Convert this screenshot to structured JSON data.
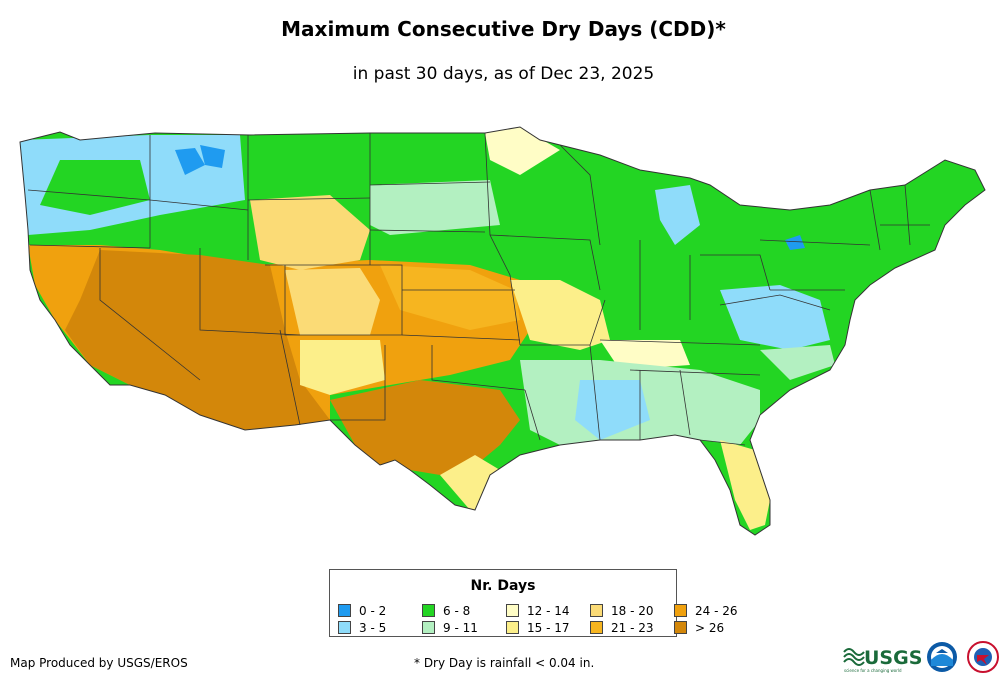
{
  "title": "Maximum Consecutive Dry Days (CDD)*",
  "subtitle": "in past 30 days, as of Dec 23, 2025",
  "legend": {
    "title": "Nr. Days",
    "items": [
      {
        "label": "0 - 2",
        "color": "#1f9bf0"
      },
      {
        "label": "3 - 5",
        "color": "#8fdcfa"
      },
      {
        "label": "6 - 8",
        "color": "#23d523"
      },
      {
        "label": "9 - 11",
        "color": "#b3f0c1"
      },
      {
        "label": "12 - 14",
        "color": "#fffdc6"
      },
      {
        "label": "15 - 17",
        "color": "#fcef8a"
      },
      {
        "label": "18 - 20",
        "color": "#fbdb76"
      },
      {
        "label": "21 - 23",
        "color": "#f6b520"
      },
      {
        "label": "24 - 26",
        "color": "#f0a10e"
      },
      {
        "label": "> 26",
        "color": "#d3870a"
      }
    ]
  },
  "footer": {
    "credit": "Map Produced by USGS/EROS",
    "footnote": "* Dry Day is rainfall < 0.04 in."
  },
  "logos": {
    "usgs": "USGS",
    "usgs_tagline": "science for a changing world"
  }
}
